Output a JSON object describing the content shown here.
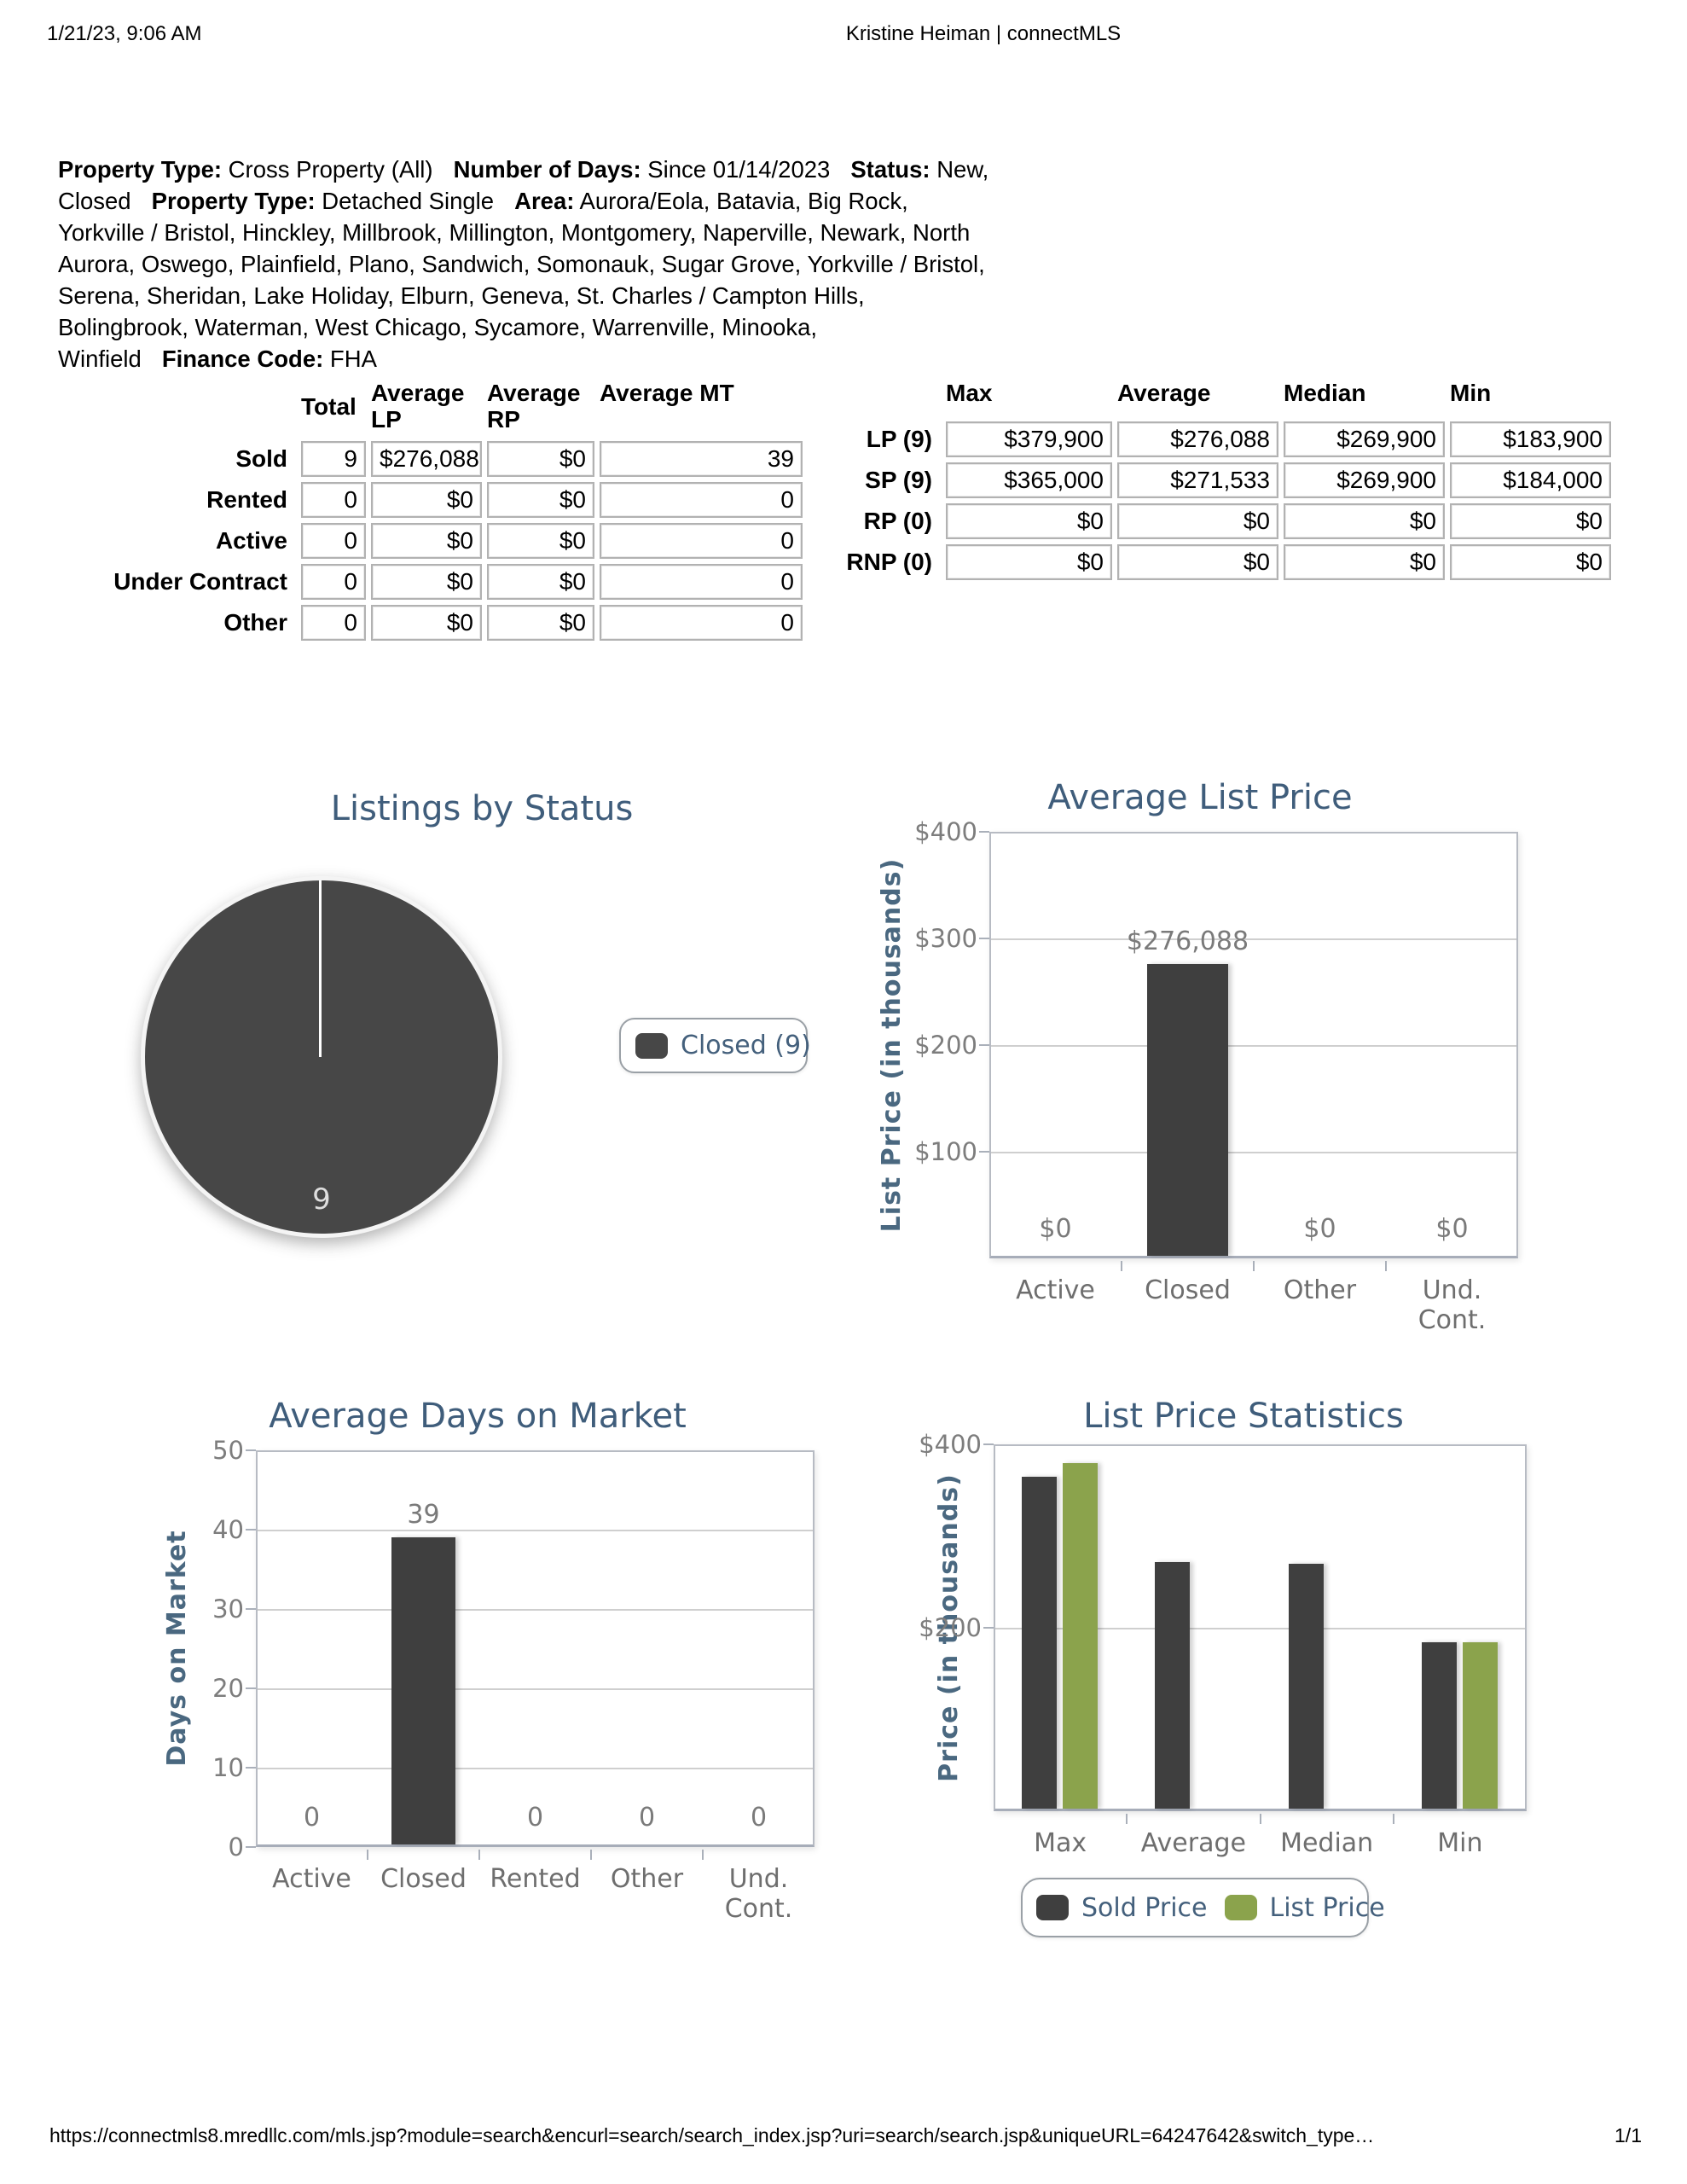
{
  "page": {
    "print_date": "1/21/23, 9:06 AM",
    "print_title": "Kristine Heiman | connectMLS",
    "footer_url": "https://connectmls8.mredllc.com/mls.jsp?module=search&encurl=search/search_index.jsp?uri=search/search.jsp&uniqueURL=64247642&switch_type…",
    "page_number": "1/1"
  },
  "criteria": {
    "segments": [
      {
        "label": "Property Type:",
        "value": "Cross Property (All)"
      },
      {
        "label": "Number of Days:",
        "value": "Since 01/14/2023"
      },
      {
        "label": "Status:",
        "value": "New, Closed"
      },
      {
        "label": "Property Type:",
        "value": "Detached Single"
      },
      {
        "label": "Area:",
        "value": "Aurora/Eola, Batavia, Big Rock, Yorkville / Bristol, Hinckley, Millbrook, Millington, Montgomery, Naperville, Newark, North Aurora, Oswego, Plainfield, Plano, Sandwich, Somonauk, Sugar Grove, Yorkville / Bristol, Serena, Sheridan, Lake Holiday, Elburn, Geneva, St. Charles / Campton Hills, Bolingbrook, Waterman, West Chicago, Sycamore, Warrenville, Minooka, Winfield"
      },
      {
        "label": "Finance Code:",
        "value": "FHA"
      }
    ]
  },
  "summary_table": {
    "headers": [
      "Total",
      "Average LP",
      "Average RP",
      "Average MT"
    ],
    "rows": [
      {
        "label": "Sold",
        "cells": [
          "9",
          "$276,088",
          "$0",
          "39"
        ]
      },
      {
        "label": "Rented",
        "cells": [
          "0",
          "$0",
          "$0",
          "0"
        ]
      },
      {
        "label": "Active",
        "cells": [
          "0",
          "$0",
          "$0",
          "0"
        ]
      },
      {
        "label": "Under Contract",
        "cells": [
          "0",
          "$0",
          "$0",
          "0"
        ]
      },
      {
        "label": "Other",
        "cells": [
          "0",
          "$0",
          "$0",
          "0"
        ]
      }
    ]
  },
  "stats_table": {
    "headers": [
      "Max",
      "Average",
      "Median",
      "Min"
    ],
    "rows": [
      {
        "label": "LP (9)",
        "cells": [
          "$379,900",
          "$276,088",
          "$269,900",
          "$183,900"
        ]
      },
      {
        "label": "SP (9)",
        "cells": [
          "$365,000",
          "$271,533",
          "$269,900",
          "$184,000"
        ]
      },
      {
        "label": "RP (0)",
        "cells": [
          "$0",
          "$0",
          "$0",
          "$0"
        ]
      },
      {
        "label": "RNP (0)",
        "cells": [
          "$0",
          "$0",
          "$0",
          "$0"
        ]
      }
    ]
  },
  "colors": {
    "title_blue": "#3f5d7b",
    "axis_blue": "#4a6880",
    "bar_dark": "#3f3f3f",
    "bar_green": "#8ba34c",
    "pie_fill": "#474747"
  },
  "chart_data": [
    {
      "type": "pie",
      "title": "Listings by Status",
      "total_label": "9",
      "slices": [
        {
          "label": "Closed",
          "value": 9,
          "color": "#474747"
        }
      ],
      "legend": [
        {
          "label": "Closed (9)",
          "color": "#474747"
        }
      ],
      "legend_position": "right"
    },
    {
      "type": "bar",
      "title": "Average List Price",
      "ylabel": "List Price (in thousands)",
      "unit": "thousands of dollars",
      "categories": [
        "Active",
        "Closed",
        "Other",
        "Und.\nCont."
      ],
      "values": [
        0,
        276.088,
        0,
        0
      ],
      "value_labels": [
        "$0",
        "$276,088",
        "$0",
        "$0"
      ],
      "bar_color": "#3f3f3f",
      "ylim": [
        0,
        400
      ],
      "yticks": [
        "$400",
        "$300",
        "$200",
        "$100"
      ],
      "ytick_values": [
        400,
        300,
        200,
        100
      ],
      "grid_values": [
        300,
        200,
        100
      ]
    },
    {
      "type": "bar",
      "title": "Average Days on Market",
      "ylabel": "Days on Market",
      "unit": "days",
      "categories": [
        "Active",
        "Closed",
        "Rented",
        "Other",
        "Und.\nCont."
      ],
      "values": [
        0,
        39,
        0,
        0,
        0
      ],
      "value_labels": [
        "0",
        "39",
        "0",
        "0",
        "0"
      ],
      "bar_color": "#3f3f3f",
      "ylim": [
        0,
        50
      ],
      "yticks": [
        "50",
        "40",
        "30",
        "20",
        "10",
        "0"
      ],
      "ytick_values": [
        50,
        40,
        30,
        20,
        10,
        0
      ],
      "grid_values": [
        40,
        30,
        20,
        10
      ]
    },
    {
      "type": "grouped-bar",
      "title": "List Price Statistics",
      "ylabel": "Price (in thousands)",
      "unit": "thousands of dollars",
      "categories": [
        "Max",
        "Average",
        "Median",
        "Min"
      ],
      "series": [
        {
          "name": "Sold Price",
          "color": "#3f3f3f",
          "values": [
            365.0,
            271.533,
            269.9,
            184.0
          ]
        },
        {
          "name": "List Price",
          "color": "#8ba34c",
          "values": [
            379.9,
            null,
            null,
            183.9
          ]
        }
      ],
      "ylim": [
        0,
        400
      ],
      "yticks": [
        "$400",
        "$200"
      ],
      "ytick_values": [
        400,
        200
      ],
      "grid_values": [
        200
      ],
      "legend_position": "bottom"
    }
  ]
}
